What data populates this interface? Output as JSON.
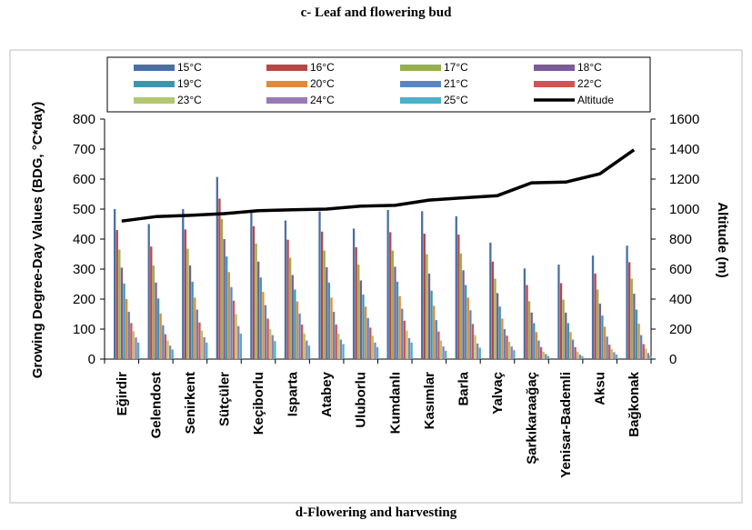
{
  "top_caption": "c- Leaf and flowering bud",
  "bottom_caption": "d-Flowering and harvesting",
  "chart_data": {
    "type": "bar",
    "categories": [
      "Eğirdir",
      "Gelendost",
      "Senirkent",
      "Sütçüler",
      "Keçiborlu",
      "Isparta",
      "Atabey",
      "Uluborlu",
      "Kumdanlı",
      "Kasımlar",
      "Barla",
      "Yalvaç",
      "Şarkıkaraağaç",
      "Yenisar-Bademli",
      "Aksu",
      "Bağkonak"
    ],
    "series": [
      {
        "name": "15°C",
        "color": "#4a6fa5",
        "values": [
          500,
          450,
          500,
          607,
          495,
          462,
          492,
          435,
          497,
          493,
          476,
          388,
          302,
          315,
          345,
          378
        ]
      },
      {
        "name": "16°C",
        "color": "#b84644",
        "values": [
          430,
          375,
          432,
          535,
          443,
          398,
          425,
          373,
          423,
          418,
          415,
          325,
          247,
          253,
          285,
          323
        ]
      },
      {
        "name": "17°C",
        "color": "#97b04e",
        "values": [
          365,
          312,
          368,
          467,
          385,
          338,
          362,
          315,
          362,
          350,
          352,
          268,
          193,
          198,
          232,
          268
        ]
      },
      {
        "name": "18°C",
        "color": "#7b5a98",
        "values": [
          305,
          255,
          312,
          400,
          325,
          280,
          306,
          262,
          308,
          285,
          296,
          220,
          155,
          155,
          185,
          218
        ]
      },
      {
        "name": "19°C",
        "color": "#3c97ad",
        "values": [
          252,
          202,
          258,
          342,
          272,
          232,
          255,
          215,
          258,
          228,
          247,
          175,
          120,
          120,
          145,
          165
        ]
      },
      {
        "name": "20°C",
        "color": "#e28a3a",
        "values": [
          200,
          152,
          205,
          290,
          224,
          192,
          205,
          175,
          210,
          178,
          205,
          135,
          90,
          90,
          108,
          118
        ]
      },
      {
        "name": "21°C",
        "color": "#5b86c2",
        "values": [
          158,
          113,
          165,
          240,
          180,
          152,
          158,
          137,
          168,
          130,
          163,
          100,
          62,
          65,
          75,
          80
        ]
      },
      {
        "name": "22°C",
        "color": "#cf5554",
        "values": [
          120,
          83,
          122,
          195,
          135,
          115,
          115,
          105,
          128,
          92,
          117,
          78,
          40,
          40,
          48,
          50
        ]
      },
      {
        "name": "23°C",
        "color": "#b2c770",
        "values": [
          93,
          62,
          95,
          150,
          100,
          85,
          85,
          78,
          95,
          62,
          80,
          58,
          25,
          25,
          33,
          35
        ]
      },
      {
        "name": "24°C",
        "color": "#9a7ab5",
        "values": [
          72,
          45,
          73,
          110,
          80,
          62,
          65,
          55,
          70,
          42,
          52,
          42,
          17,
          15,
          23,
          20
        ]
      },
      {
        "name": "25°C",
        "color": "#4bb0c8",
        "values": [
          55,
          32,
          55,
          85,
          60,
          45,
          50,
          40,
          55,
          28,
          38,
          30,
          10,
          10,
          15,
          12
        ]
      }
    ],
    "altitude": {
      "name": "Altitude",
      "color": "#000000",
      "values": [
        920,
        950,
        958,
        970,
        990,
        995,
        1000,
        1020,
        1025,
        1060,
        1075,
        1090,
        1175,
        1180,
        1235,
        1395
      ]
    },
    "ylabel": "Growing Degree-Day Values (BDG, °C*day)",
    "y2label": "Altitude (m)",
    "ylim": [
      0,
      800
    ],
    "y2lim": [
      0,
      1600
    ],
    "yticks": [
      "0",
      "100",
      "200",
      "300",
      "400",
      "500",
      "600",
      "700",
      "800"
    ],
    "y2ticks": [
      "0",
      "200",
      "400",
      "600",
      "800",
      "1000",
      "1200",
      "1400",
      "1600"
    ],
    "legend_position": "top",
    "grid": false
  }
}
